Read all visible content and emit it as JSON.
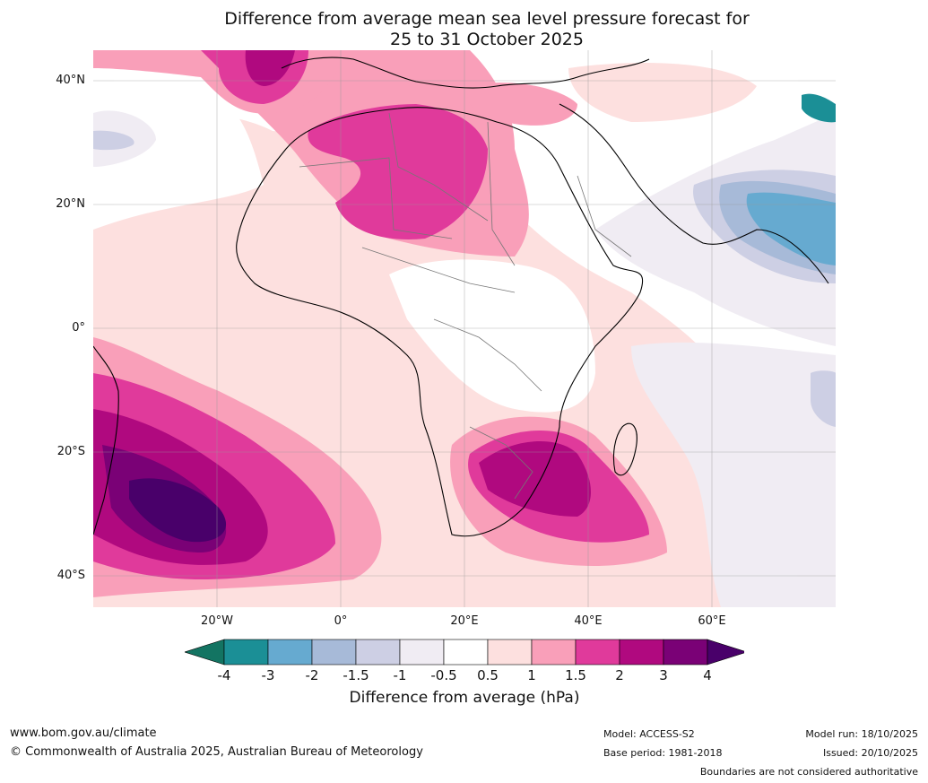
{
  "title": {
    "line1": "Difference from average mean sea level pressure forecast for",
    "line2": "25 to 31 October 2025"
  },
  "axes": {
    "lat_labels": [
      "40°N",
      "20°N",
      "0°",
      "20°S",
      "40°S"
    ],
    "lon_labels": [
      "20°W",
      "0°",
      "20°E",
      "40°E",
      "60°E"
    ]
  },
  "colorbar": {
    "ticks": [
      "-4",
      "-3",
      "-2",
      "-1.5",
      "-1",
      "-0.5",
      "0.5",
      "1",
      "1.5",
      "2",
      "3",
      "4"
    ],
    "colors": [
      "#137462",
      "#1b8f96",
      "#66aad0",
      "#a7bad8",
      "#cdcfe4",
      "#f0ecf3",
      "#ffffff",
      "#fde0df",
      "#f99fb9",
      "#e03a9b",
      "#b0097f",
      "#7a0176",
      "#49006a"
    ],
    "label": "Difference from average (hPa)"
  },
  "footer": {
    "website": "www.bom.gov.au/climate",
    "copyright": "© Commonwealth of Australia 2025, Australian Bureau of Meteorology",
    "model": "Model: ACCESS-S2",
    "base_period": "Base period: 1981-2018",
    "model_run": "Model run: 18/10/2025",
    "issued": "Issued: 20/10/2025",
    "disclaimer": "Boundaries are not considered authoritative"
  }
}
